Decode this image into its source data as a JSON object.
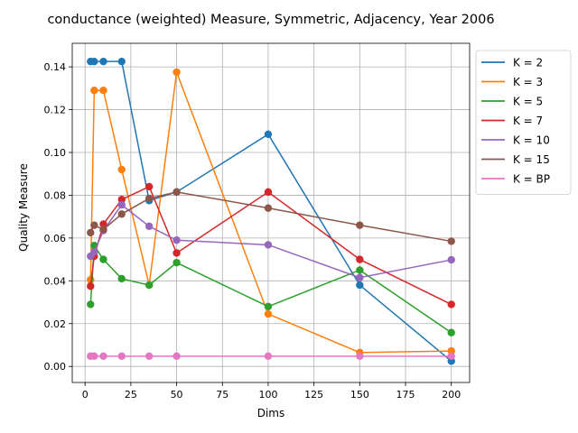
{
  "chart_data": {
    "type": "line",
    "title": "conductance (weighted) Measure, Symmetric, Adjacency, Year 2006",
    "xlabel": "Dims",
    "ylabel": "Quality Measure",
    "xlim": [
      -7,
      210
    ],
    "ylim": [
      -0.0075,
      0.151
    ],
    "xticks": [
      0,
      25,
      50,
      75,
      100,
      125,
      150,
      175,
      200
    ],
    "xtick_labels": [
      "0",
      "25",
      "50",
      "75",
      "100",
      "125",
      "150",
      "175",
      "200"
    ],
    "yticks": [
      0.0,
      0.02,
      0.04,
      0.06,
      0.08,
      0.1,
      0.12,
      0.14
    ],
    "ytick_labels": [
      "0.00",
      "0.02",
      "0.04",
      "0.06",
      "0.08",
      "0.10",
      "0.12",
      "0.14"
    ],
    "grid": true,
    "legend_position": "outside-top-right",
    "series": [
      {
        "name": "K = 2",
        "color": "#1f77b4",
        "x": [
          3,
          5,
          10,
          20,
          35,
          50,
          100,
          150,
          200
        ],
        "y": [
          0.1425,
          0.1425,
          0.1425,
          0.1425,
          0.0775,
          0.0815,
          0.1085,
          0.038,
          0.0025
        ]
      },
      {
        "name": "K = 3",
        "color": "#ff7f0e",
        "x": [
          3,
          5,
          10,
          20,
          35,
          50,
          100,
          150,
          200
        ],
        "y": [
          0.0405,
          0.129,
          0.129,
          0.092,
          0.038,
          0.1375,
          0.0245,
          0.0065,
          0.0072
        ]
      },
      {
        "name": "K = 5",
        "color": "#2ca02c",
        "x": [
          3,
          5,
          10,
          20,
          35,
          50,
          100,
          150,
          200
        ],
        "y": [
          0.029,
          0.0565,
          0.05,
          0.041,
          0.038,
          0.0485,
          0.028,
          0.045,
          0.0158
        ]
      },
      {
        "name": "K = 7",
        "color": "#d62728",
        "x": [
          3,
          5,
          10,
          20,
          35,
          50,
          100,
          150,
          200
        ],
        "y": [
          0.0375,
          0.0515,
          0.0665,
          0.078,
          0.084,
          0.053,
          0.0815,
          0.05,
          0.029
        ]
      },
      {
        "name": "K = 10",
        "color": "#9467bd",
        "x": [
          3,
          5,
          10,
          20,
          35,
          50,
          100,
          150,
          200
        ],
        "y": [
          0.0515,
          0.0535,
          0.0635,
          0.0755,
          0.0655,
          0.059,
          0.0568,
          0.0415,
          0.0498
        ]
      },
      {
        "name": "K = 15",
        "color": "#8c564b",
        "x": [
          3,
          5,
          10,
          20,
          35,
          50,
          100,
          150,
          200
        ],
        "y": [
          0.0625,
          0.066,
          0.064,
          0.0712,
          0.0785,
          0.0815,
          0.074,
          0.066,
          0.0585
        ]
      },
      {
        "name": "K = BP",
        "color": "#e377c2",
        "x": [
          3,
          5,
          10,
          20,
          35,
          50,
          100,
          150,
          200
        ],
        "y": [
          0.0048,
          0.0048,
          0.0048,
          0.0048,
          0.0048,
          0.0048,
          0.0048,
          0.0048,
          0.0048
        ]
      }
    ]
  }
}
